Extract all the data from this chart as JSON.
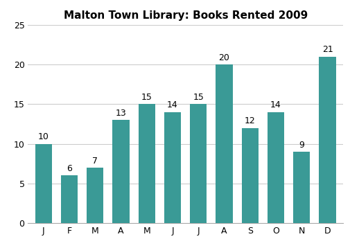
{
  "title": "Malton Town Library: Books Rented 2009",
  "categories": [
    "J",
    "F",
    "M",
    "A",
    "M",
    "J",
    "J",
    "A",
    "S",
    "O",
    "N",
    "D"
  ],
  "values": [
    10,
    6,
    7,
    13,
    15,
    14,
    15,
    20,
    12,
    14,
    9,
    21
  ],
  "bar_color": "#3a9a96",
  "ylim": [
    0,
    25
  ],
  "yticks": [
    0,
    5,
    10,
    15,
    20,
    25
  ],
  "title_fontsize": 11,
  "tick_fontsize": 9,
  "annotation_fontsize": 9,
  "background_color": "#ffffff",
  "grid_color": "#cccccc",
  "bar_width": 0.65
}
